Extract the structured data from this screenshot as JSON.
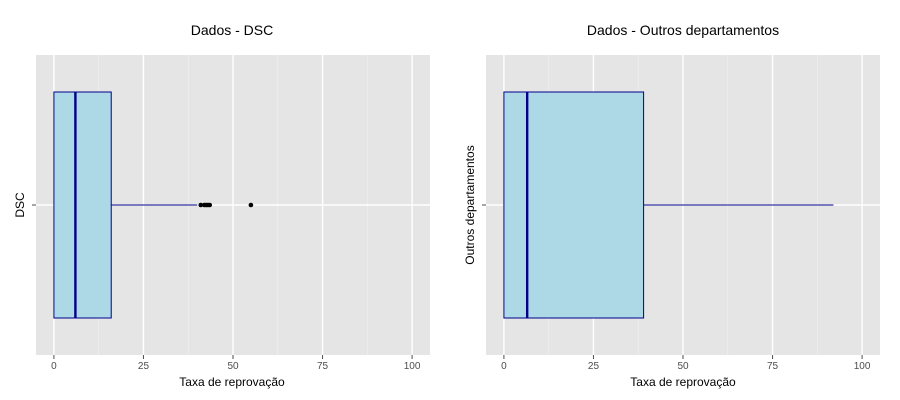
{
  "colors": {
    "panel_bg": "#e5e5e5",
    "grid_major": "#ffffff",
    "box_fill": "#add8e6",
    "box_stroke": "#00008b",
    "tick": "#4d4d4d"
  },
  "chart_data": [
    {
      "type": "boxplot",
      "orientation": "horizontal",
      "title": "Dados - DSC",
      "xlabel": "Taxa de reprovação",
      "ylabel": "DSC",
      "xlim": [
        -5,
        105
      ],
      "xticks": [
        0,
        25,
        50,
        75,
        100
      ],
      "xtick_labels": [
        "0",
        "25",
        "50",
        "75",
        "100"
      ],
      "grid": true,
      "stats": {
        "min": 0,
        "q1": 0,
        "median": 6,
        "q3": 16,
        "whisker_high": 40
      },
      "outliers": [
        41,
        42,
        42.5,
        43,
        43.5,
        55
      ]
    },
    {
      "type": "boxplot",
      "orientation": "horizontal",
      "title": "Dados - Outros departamentos",
      "xlabel": "Taxa de reprovação",
      "ylabel": "Outros departamentos",
      "xlim": [
        -5,
        105
      ],
      "xticks": [
        0,
        25,
        50,
        75,
        100
      ],
      "xtick_labels": [
        "0",
        "25",
        "50",
        "75",
        "100"
      ],
      "grid": true,
      "stats": {
        "min": 0,
        "q1": 0,
        "median": 6.5,
        "q3": 39,
        "whisker_high": 92
      },
      "outliers": []
    }
  ]
}
